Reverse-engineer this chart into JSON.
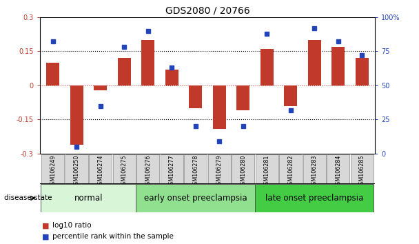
{
  "title": "GDS2080 / 20766",
  "samples": [
    "GSM106249",
    "GSM106250",
    "GSM106274",
    "GSM106275",
    "GSM106276",
    "GSM106277",
    "GSM106278",
    "GSM106279",
    "GSM106280",
    "GSM106281",
    "GSM106282",
    "GSM106283",
    "GSM106284",
    "GSM106285"
  ],
  "log10_ratio": [
    0.1,
    -0.26,
    -0.02,
    0.12,
    0.2,
    0.07,
    -0.1,
    -0.19,
    -0.11,
    0.16,
    -0.09,
    0.2,
    0.17,
    0.12
  ],
  "percentile_rank": [
    82,
    5,
    35,
    78,
    90,
    63,
    20,
    9,
    20,
    88,
    32,
    92,
    82,
    72
  ],
  "bar_color": "#c0392b",
  "dot_color": "#2244bb",
  "groups": [
    {
      "label": "normal",
      "start": 0,
      "end": 4,
      "color": "#d8f5d8"
    },
    {
      "label": "early onset preeclampsia",
      "start": 4,
      "end": 9,
      "color": "#90e090"
    },
    {
      "label": "late onset preeclampsia",
      "start": 9,
      "end": 14,
      "color": "#44cc44"
    }
  ],
  "ylim_left": [
    -0.3,
    0.3
  ],
  "ylim_right": [
    0,
    100
  ],
  "yticks_left": [
    -0.3,
    -0.15,
    0,
    0.15,
    0.3
  ],
  "ytick_labels_left": [
    "-0.3",
    "-0.15",
    "0",
    "0.15",
    "0.3"
  ],
  "yticks_right": [
    0,
    25,
    50,
    75,
    100
  ],
  "ytick_labels_right": [
    "0",
    "25",
    "50",
    "75",
    "100%"
  ],
  "hlines_dotted": [
    -0.15,
    0.15
  ],
  "hline_red": 0,
  "legend_items": [
    {
      "label": "log10 ratio",
      "color": "#c0392b"
    },
    {
      "label": "percentile rank within the sample",
      "color": "#2244bb"
    }
  ],
  "disease_state_label": "disease state",
  "background_color": "#ffffff",
  "title_fontsize": 10,
  "tick_fontsize": 7,
  "group_label_fontsize": 8.5,
  "xtick_bg": "#d8d8d8"
}
